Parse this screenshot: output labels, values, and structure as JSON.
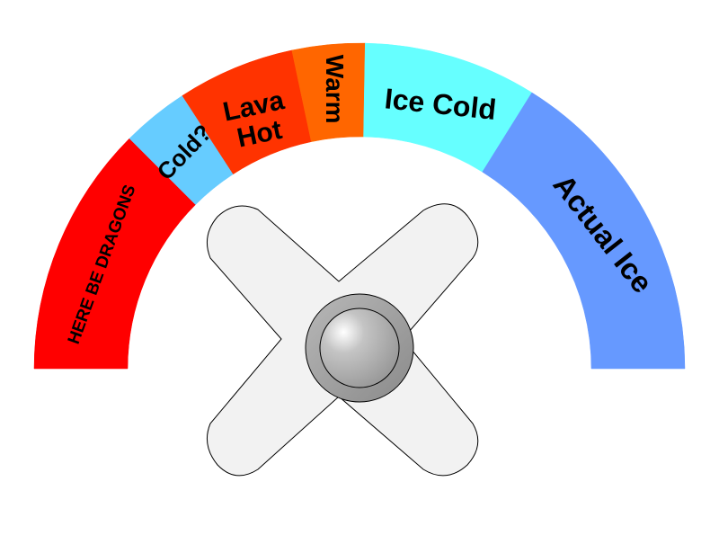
{
  "dial": {
    "segments": [
      {
        "label_lines": [
          "HERE BE DRAGONS"
        ],
        "color": "#ff0000"
      },
      {
        "label_lines": [
          "Cold?"
        ],
        "color": "#66ccff"
      },
      {
        "label_lines": [
          "Lava",
          "Hot"
        ],
        "color": "#ff3300"
      },
      {
        "label_lines": [
          "Warm"
        ],
        "color": "#ff6600"
      },
      {
        "label_lines": [
          "Ice Cold"
        ],
        "color": "#66ffff"
      },
      {
        "label_lines": [
          "Actual Ice"
        ],
        "color": "#6699ff"
      }
    ]
  },
  "knob": {
    "body_color": "#f2f2f2",
    "hub_color": "#aaaaaa"
  }
}
